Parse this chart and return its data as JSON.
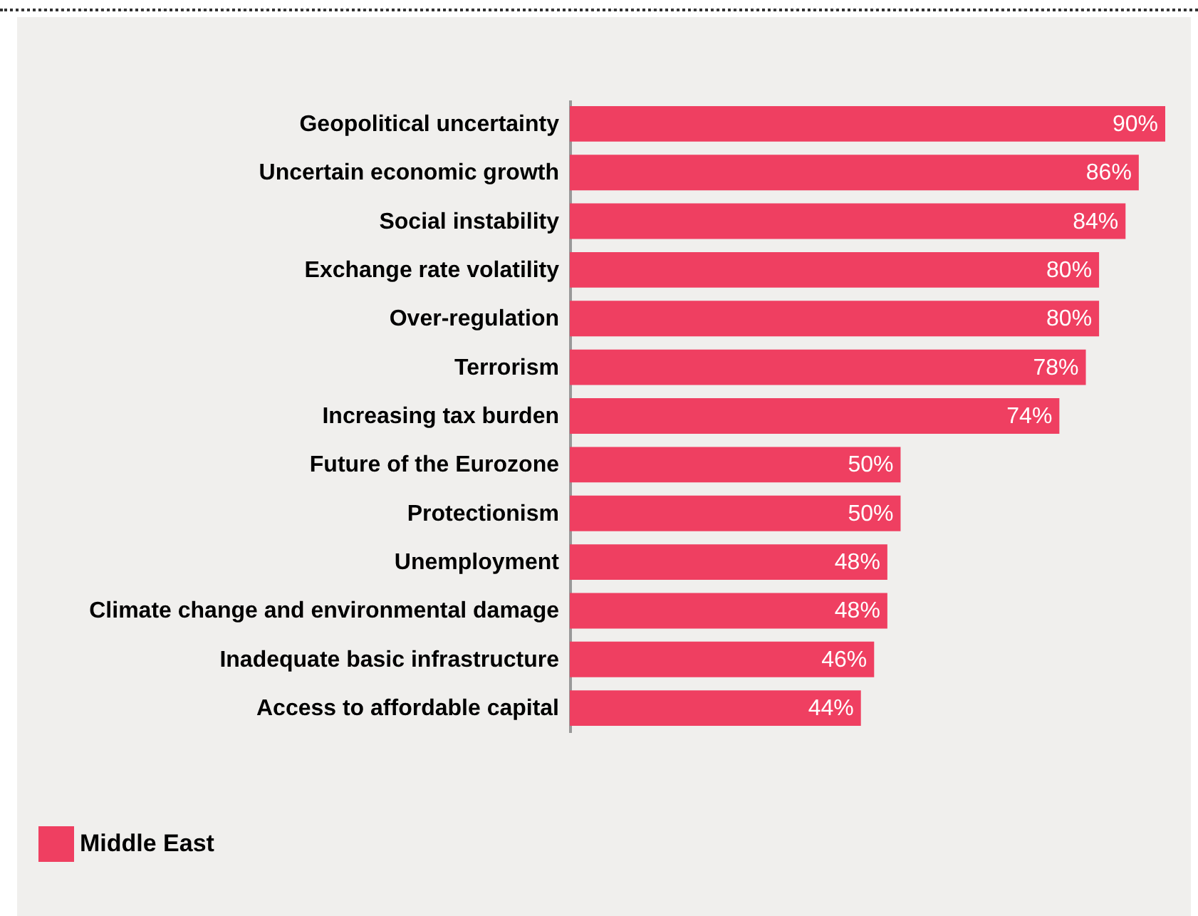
{
  "chart_data": {
    "type": "bar",
    "orientation": "horizontal",
    "categories": [
      "Geopolitical uncertainty",
      "Uncertain economic growth",
      "Social instability",
      "Exchange rate volatility",
      "Over-regulation",
      "Terrorism",
      "Increasing tax burden",
      "Future of the Eurozone",
      "Protectionism",
      "Unemployment",
      "Climate change and environmental damage",
      "Inadequate basic infrastructure",
      "Access to affordable capital"
    ],
    "series": [
      {
        "name": "Middle East",
        "color": "#ef3f61",
        "values": [
          90,
          86,
          84,
          80,
          80,
          78,
          74,
          50,
          50,
          48,
          48,
          46,
          44
        ],
        "value_labels": [
          "90%",
          "86%",
          "84%",
          "80%",
          "80%",
          "78%",
          "74%",
          "50%",
          "50%",
          "48%",
          "48%",
          "46%",
          "44%"
        ]
      }
    ],
    "legend": "bottom left"
  }
}
